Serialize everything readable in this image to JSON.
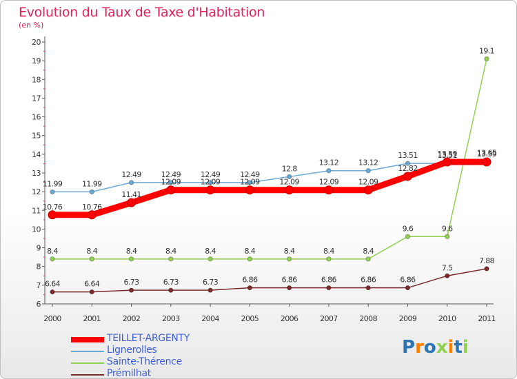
{
  "header": {
    "title": "Evolution du Taux de Taxe d'Habitation",
    "unit": "(en %)"
  },
  "logo": {
    "text": "Proxiti"
  },
  "chart_data": {
    "type": "line",
    "title": "Evolution du Taux de Taxe d'Habitation",
    "ylabel": "(en %)",
    "xlabel": "",
    "ylim": [
      6,
      20
    ],
    "yticks": [
      6,
      7,
      8,
      9,
      10,
      11,
      12,
      13,
      14,
      15,
      16,
      17,
      18,
      19,
      20
    ],
    "categories": [
      "2000",
      "2001",
      "2002",
      "2003",
      "2004",
      "2005",
      "2006",
      "2007",
      "2008",
      "2009",
      "2010",
      "2011"
    ],
    "grid": false,
    "legend": "bottom-left",
    "series": [
      {
        "name": "TEILLET-ARGENTY",
        "color": "#ff0000",
        "values": [
          10.76,
          10.76,
          11.41,
          12.09,
          12.09,
          12.09,
          12.09,
          12.09,
          12.09,
          12.82,
          13.59,
          13.59
        ],
        "labels": [
          "10.76",
          "10.76",
          "11.41",
          "12.09",
          "12.09",
          "12.09",
          "12.09",
          "12.09",
          "12.09",
          "12.82",
          "13.59",
          "13.59"
        ]
      },
      {
        "name": "Lignerolles",
        "color": "#6aa9d4",
        "values": [
          11.99,
          11.99,
          12.49,
          12.49,
          12.49,
          12.49,
          12.8,
          13.12,
          13.12,
          13.51,
          13.51,
          13.65
        ],
        "labels": [
          "11.99",
          "11.99",
          "12.49",
          "12.49",
          "12.49",
          "12.49",
          "12.8",
          "13.12",
          "13.12",
          "13.51",
          "13.51",
          "13.65"
        ]
      },
      {
        "name": "Sainte-Thérence",
        "color": "#92d050",
        "values": [
          8.4,
          8.4,
          8.4,
          8.4,
          8.4,
          8.4,
          8.4,
          8.4,
          8.4,
          9.6,
          9.6,
          19.1
        ],
        "labels": [
          "8.4",
          "8.4",
          "8.4",
          "8.4",
          "8.4",
          "8.4",
          "8.4",
          "8.4",
          "8.4",
          "9.6",
          "9.6",
          "19.1"
        ]
      },
      {
        "name": "Prémilhat",
        "color": "#7b2a2a",
        "values": [
          6.64,
          6.64,
          6.73,
          6.73,
          6.73,
          6.86,
          6.86,
          6.86,
          6.86,
          6.86,
          7.5,
          7.88
        ],
        "labels": [
          "6.64",
          "6.64",
          "6.73",
          "6.73",
          "6.73",
          "6.86",
          "6.86",
          "6.86",
          "6.86",
          "6.86",
          "7.5",
          "7.88"
        ]
      }
    ]
  }
}
